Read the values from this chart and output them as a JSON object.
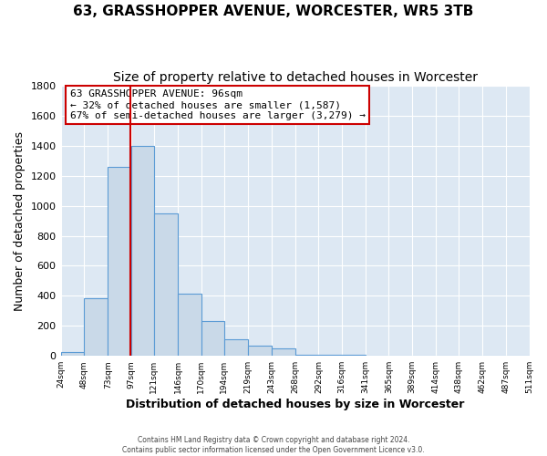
{
  "title1": "63, GRASSHOPPER AVENUE, WORCESTER, WR5 3TB",
  "title2": "Size of property relative to detached houses in Worcester",
  "xlabel": "Distribution of detached houses by size in Worcester",
  "ylabel": "Number of detached properties",
  "bin_edges": [
    24,
    48,
    73,
    97,
    121,
    146,
    170,
    194,
    219,
    243,
    268,
    292,
    316,
    341,
    365,
    389,
    414,
    438,
    462,
    487,
    511
  ],
  "bar_heights": [
    25,
    385,
    1260,
    1400,
    950,
    415,
    235,
    110,
    70,
    50,
    10,
    8,
    5,
    4,
    2,
    2,
    1,
    1,
    1,
    1
  ],
  "bar_color": "#c9d9e8",
  "bar_edge_color": "#5b9bd5",
  "property_size": 96,
  "property_line_color": "#cc0000",
  "ylim": [
    0,
    1800
  ],
  "yticks": [
    0,
    200,
    400,
    600,
    800,
    1000,
    1200,
    1400,
    1600,
    1800
  ],
  "annotation_title": "63 GRASSHOPPER AVENUE: 96sqm",
  "annotation_line1": "← 32% of detached houses are smaller (1,587)",
  "annotation_line2": "67% of semi-detached houses are larger (3,279) →",
  "annotation_box_color": "#ffffff",
  "annotation_box_edge": "#cc0000",
  "footer1": "Contains HM Land Registry data © Crown copyright and database right 2024.",
  "footer2": "Contains public sector information licensed under the Open Government Licence v3.0.",
  "fig_background_color": "#ffffff",
  "plot_background_color": "#dde8f3",
  "grid_color": "#ffffff",
  "title1_fontsize": 11,
  "title2_fontsize": 10,
  "xlabel_fontsize": 9,
  "ylabel_fontsize": 9
}
